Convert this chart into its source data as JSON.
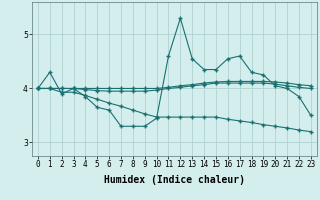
{
  "xlabel": "Humidex (Indice chaleur)",
  "bg_color": "#d4eeee",
  "grid_color": "#aacccc",
  "line_color": "#1a7070",
  "x_values": [
    0,
    1,
    2,
    3,
    4,
    5,
    6,
    7,
    8,
    9,
    10,
    11,
    12,
    13,
    14,
    15,
    16,
    17,
    18,
    19,
    20,
    21,
    22,
    23
  ],
  "series1": [
    4.0,
    4.3,
    3.9,
    4.0,
    3.85,
    3.65,
    3.6,
    3.3,
    3.3,
    3.3,
    3.45,
    4.6,
    5.3,
    4.55,
    4.35,
    4.35,
    4.55,
    4.6,
    4.3,
    4.25,
    4.05,
    4.0,
    3.85,
    3.5
  ],
  "series2": [
    4.0,
    4.0,
    3.93,
    3.93,
    3.87,
    3.8,
    3.73,
    3.67,
    3.6,
    3.53,
    3.47,
    3.47,
    3.47,
    3.47,
    3.47,
    3.47,
    3.43,
    3.4,
    3.37,
    3.33,
    3.3,
    3.27,
    3.23,
    3.2
  ],
  "series3": [
    4.0,
    4.0,
    4.0,
    4.0,
    4.0,
    4.0,
    4.0,
    4.0,
    4.0,
    4.0,
    4.0,
    4.02,
    4.05,
    4.07,
    4.1,
    4.12,
    4.13,
    4.13,
    4.13,
    4.13,
    4.12,
    4.1,
    4.07,
    4.05
  ],
  "series4": [
    4.0,
    4.0,
    4.0,
    4.0,
    3.98,
    3.96,
    3.95,
    3.95,
    3.95,
    3.95,
    3.97,
    4.0,
    4.02,
    4.05,
    4.07,
    4.1,
    4.1,
    4.1,
    4.1,
    4.1,
    4.08,
    4.05,
    4.02,
    4.0
  ],
  "ylim": [
    2.75,
    5.6
  ],
  "yticks": [
    3,
    4,
    5
  ],
  "xtick_labels": [
    "0",
    "1",
    "2",
    "3",
    "4",
    "5",
    "6",
    "7",
    "8",
    "9",
    "10",
    "11",
    "12",
    "13",
    "14",
    "15",
    "16",
    "17",
    "18",
    "19",
    "20",
    "21",
    "22",
    "23"
  ],
  "title_fontsize": 7,
  "axis_fontsize": 7,
  "tick_fontsize": 5.5
}
